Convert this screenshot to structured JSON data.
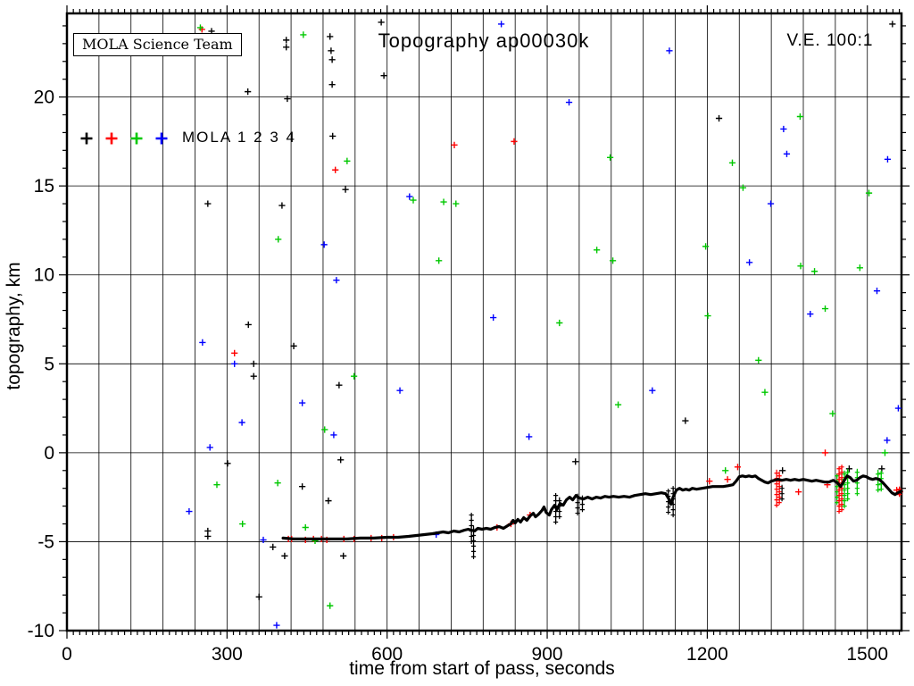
{
  "annotations": {
    "credit": "MOLA Science Team",
    "title": "Topography ap00030k",
    "vertical_exaggeration": "V.E. 100:1"
  },
  "legend": {
    "label": "MOLA 1 2 3 4",
    "marker_colors": [
      "#000000",
      "#ff0000",
      "#00c800",
      "#0000ff"
    ]
  },
  "chart_data": {
    "type": "scatter",
    "title": "Topography ap00030k",
    "xlabel": "time from start of pass, seconds",
    "ylabel": "topography, km",
    "axes": {
      "x": {
        "min": 0,
        "max": 1564,
        "ticks": [
          0,
          300,
          600,
          900,
          1200,
          1500
        ],
        "grid_step": 60,
        "minor_step": 12
      },
      "y": {
        "min": -10,
        "max": 24.7,
        "ticks": [
          20,
          15,
          10,
          5,
          0,
          -5,
          -10
        ],
        "grid_values": [
          -5,
          0,
          5,
          10,
          15,
          20
        ],
        "minor_step": 1
      }
    },
    "grid": "on",
    "legend_position": "upper-left-inside",
    "series": [
      {
        "name": "MOLA 1",
        "color": "#000000",
        "points": [
          [
            264,
            14.0
          ],
          [
            271,
            23.7
          ],
          [
            301,
            -0.6
          ],
          [
            339,
            20.3
          ],
          [
            340,
            7.2
          ],
          [
            350,
            5.0
          ],
          [
            350,
            4.3
          ],
          [
            360,
            -8.1
          ],
          [
            386,
            -5.3
          ],
          [
            403,
            13.9
          ],
          [
            408,
            -5.8
          ],
          [
            411,
            23.2
          ],
          [
            411,
            22.8
          ],
          [
            413,
            19.9
          ],
          [
            425,
            6.0
          ],
          [
            441,
            -1.9
          ],
          [
            264,
            -4.4
          ],
          [
            264,
            -4.7
          ],
          [
            490,
            -2.7
          ],
          [
            493,
            23.4
          ],
          [
            495,
            22.6
          ],
          [
            497,
            22.1
          ],
          [
            497,
            20.7
          ],
          [
            498,
            17.8
          ],
          [
            510,
            3.8
          ],
          [
            513,
            -0.4
          ],
          [
            518,
            -5.8
          ],
          [
            522,
            14.8
          ],
          [
            589,
            24.2
          ],
          [
            594,
            21.2
          ],
          [
            953,
            -0.5
          ],
          [
            1159,
            1.8
          ],
          [
            1222,
            18.8
          ],
          [
            1341,
            -1.0
          ],
          [
            1466,
            -0.9
          ],
          [
            1527,
            -0.9
          ],
          [
            1547,
            24.1
          ]
        ]
      },
      {
        "name": "MOLA 2",
        "color": "#ff0000",
        "points": [
          [
            253,
            23.8
          ],
          [
            314,
            5.6
          ],
          [
            503,
            15.9
          ],
          [
            726,
            17.3
          ],
          [
            838,
            17.5
          ],
          [
            1257,
            -0.8
          ],
          [
            1421,
            0.0
          ],
          [
            415,
            -4.85
          ],
          [
            421,
            -4.85
          ],
          [
            447,
            -4.9
          ],
          [
            462,
            -4.85
          ],
          [
            477,
            -4.85
          ],
          [
            487,
            -4.9
          ],
          [
            519,
            -4.85
          ],
          [
            538,
            -4.85
          ],
          [
            570,
            -4.8
          ],
          [
            590,
            -4.8
          ],
          [
            612,
            -4.75
          ],
          [
            806,
            -4.2
          ],
          [
            832,
            -4.0
          ],
          [
            868,
            -3.5
          ],
          [
            1204,
            -1.6
          ],
          [
            1238,
            -1.5
          ],
          [
            1371,
            -2.2
          ],
          [
            1425,
            -1.8
          ],
          [
            1555,
            -2.1
          ],
          [
            1561,
            -2.2
          ]
        ]
      },
      {
        "name": "MOLA 3",
        "color": "#00c800",
        "points": [
          [
            250,
            23.9
          ],
          [
            281,
            -1.8
          ],
          [
            329,
            -4.0
          ],
          [
            395,
            -1.7
          ],
          [
            396,
            12.0
          ],
          [
            443,
            23.5
          ],
          [
            447,
            -4.2
          ],
          [
            465,
            -4.95
          ],
          [
            483,
            1.3
          ],
          [
            493,
            -8.6
          ],
          [
            525,
            16.4
          ],
          [
            538,
            4.3
          ],
          [
            649,
            14.2
          ],
          [
            697,
            10.8
          ],
          [
            706,
            14.1
          ],
          [
            729,
            14.0
          ],
          [
            923,
            7.3
          ],
          [
            993,
            11.4
          ],
          [
            1018,
            16.6
          ],
          [
            1023,
            10.8
          ],
          [
            1033,
            2.7
          ],
          [
            1197,
            11.6
          ],
          [
            1201,
            7.7
          ],
          [
            1234,
            -1.0
          ],
          [
            1247,
            16.3
          ],
          [
            1267,
            14.9
          ],
          [
            1296,
            5.2
          ],
          [
            1308,
            3.4
          ],
          [
            1374,
            18.9
          ],
          [
            1375,
            10.5
          ],
          [
            1401,
            10.2
          ],
          [
            1421,
            8.1
          ],
          [
            1435,
            2.2
          ],
          [
            1486,
            10.4
          ],
          [
            1503,
            14.6
          ],
          [
            1533,
            0.0
          ]
        ]
      },
      {
        "name": "MOLA 4",
        "color": "#0000ff",
        "points": [
          [
            229,
            -3.3
          ],
          [
            254,
            6.2
          ],
          [
            268,
            0.3
          ],
          [
            314,
            5.0
          ],
          [
            328,
            1.7
          ],
          [
            368,
            -4.9
          ],
          [
            393,
            -9.7
          ],
          [
            441,
            2.8
          ],
          [
            482,
            11.7
          ],
          [
            500,
            1.0
          ],
          [
            505,
            9.7
          ],
          [
            624,
            3.5
          ],
          [
            642,
            14.4
          ],
          [
            692,
            -4.6
          ],
          [
            799,
            7.6
          ],
          [
            814,
            24.1
          ],
          [
            866,
            0.9
          ],
          [
            941,
            19.7
          ],
          [
            1097,
            3.5
          ],
          [
            1129,
            22.6
          ],
          [
            1279,
            10.7
          ],
          [
            1319,
            14.0
          ],
          [
            1343,
            18.2
          ],
          [
            1349,
            16.8
          ],
          [
            1393,
            7.8
          ],
          [
            1518,
            9.1
          ],
          [
            1537,
            0.7
          ],
          [
            1538,
            16.5
          ],
          [
            1558,
            2.5
          ]
        ]
      }
    ],
    "ground_track": {
      "name": "surface profile (dense MOLA 1 returns)",
      "color": "#000000",
      "polyline": [
        [
          405,
          -4.8
        ],
        [
          425,
          -4.85
        ],
        [
          450,
          -4.85
        ],
        [
          475,
          -4.85
        ],
        [
          500,
          -4.85
        ],
        [
          525,
          -4.85
        ],
        [
          550,
          -4.8
        ],
        [
          575,
          -4.8
        ],
        [
          600,
          -4.75
        ],
        [
          620,
          -4.75
        ],
        [
          640,
          -4.7
        ],
        [
          655,
          -4.65
        ],
        [
          670,
          -4.6
        ],
        [
          685,
          -4.55
        ],
        [
          695,
          -4.5
        ],
        [
          705,
          -4.45
        ],
        [
          715,
          -4.5
        ],
        [
          725,
          -4.4
        ],
        [
          735,
          -4.45
        ],
        [
          745,
          -4.35
        ],
        [
          752,
          -4.3
        ],
        [
          758,
          -4.35
        ],
        [
          764,
          -4.4
        ],
        [
          770,
          -4.25
        ],
        [
          778,
          -4.3
        ],
        [
          786,
          -4.25
        ],
        [
          794,
          -4.3
        ],
        [
          802,
          -4.2
        ],
        [
          810,
          -4.15
        ],
        [
          818,
          -4.25
        ],
        [
          826,
          -4.1
        ],
        [
          832,
          -4.0
        ],
        [
          836,
          -3.8
        ],
        [
          840,
          -3.95
        ],
        [
          845,
          -3.75
        ],
        [
          850,
          -3.9
        ],
        [
          856,
          -3.65
        ],
        [
          862,
          -3.8
        ],
        [
          868,
          -3.55
        ],
        [
          874,
          -3.4
        ],
        [
          878,
          -3.6
        ],
        [
          884,
          -3.45
        ],
        [
          890,
          -3.25
        ],
        [
          894,
          -3.05
        ],
        [
          898,
          -3.35
        ],
        [
          904,
          -3.5
        ],
        [
          908,
          -3.2
        ],
        [
          914,
          -2.95
        ],
        [
          918,
          -3.2
        ],
        [
          924,
          -2.85
        ],
        [
          930,
          -2.95
        ],
        [
          936,
          -2.65
        ],
        [
          942,
          -2.5
        ],
        [
          948,
          -2.65
        ],
        [
          954,
          -2.4
        ],
        [
          960,
          -2.55
        ],
        [
          968,
          -2.6
        ],
        [
          976,
          -2.5
        ],
        [
          984,
          -2.6
        ],
        [
          992,
          -2.5
        ],
        [
          1000,
          -2.55
        ],
        [
          1008,
          -2.45
        ],
        [
          1016,
          -2.5
        ],
        [
          1024,
          -2.45
        ],
        [
          1034,
          -2.5
        ],
        [
          1044,
          -2.45
        ],
        [
          1054,
          -2.5
        ],
        [
          1064,
          -2.4
        ],
        [
          1074,
          -2.35
        ],
        [
          1084,
          -2.3
        ],
        [
          1094,
          -2.35
        ],
        [
          1104,
          -2.3
        ],
        [
          1114,
          -2.25
        ],
        [
          1122,
          -2.3
        ],
        [
          1128,
          -2.6
        ],
        [
          1132,
          -2.9
        ],
        [
          1136,
          -2.5
        ],
        [
          1142,
          -2.1
        ],
        [
          1148,
          -2.0
        ],
        [
          1154,
          -2.1
        ],
        [
          1160,
          -2.05
        ],
        [
          1166,
          -2.1
        ],
        [
          1172,
          -2.0
        ],
        [
          1180,
          -2.05
        ],
        [
          1190,
          -2.0
        ],
        [
          1200,
          -1.95
        ],
        [
          1210,
          -1.9
        ],
        [
          1220,
          -1.9
        ],
        [
          1230,
          -1.9
        ],
        [
          1240,
          -1.85
        ],
        [
          1248,
          -1.8
        ],
        [
          1254,
          -1.6
        ],
        [
          1260,
          -1.35
        ],
        [
          1266,
          -1.3
        ],
        [
          1272,
          -1.35
        ],
        [
          1278,
          -1.3
        ],
        [
          1284,
          -1.35
        ],
        [
          1290,
          -1.3
        ],
        [
          1296,
          -1.45
        ],
        [
          1302,
          -1.55
        ],
        [
          1308,
          -1.65
        ],
        [
          1314,
          -1.7
        ],
        [
          1320,
          -1.6
        ],
        [
          1326,
          -1.55
        ],
        [
          1332,
          -1.5
        ],
        [
          1340,
          -1.55
        ],
        [
          1348,
          -1.5
        ],
        [
          1356,
          -1.55
        ],
        [
          1364,
          -1.5
        ],
        [
          1372,
          -1.55
        ],
        [
          1380,
          -1.5
        ],
        [
          1388,
          -1.55
        ],
        [
          1396,
          -1.6
        ],
        [
          1404,
          -1.55
        ],
        [
          1412,
          -1.6
        ],
        [
          1420,
          -1.65
        ],
        [
          1428,
          -1.65
        ],
        [
          1436,
          -1.55
        ],
        [
          1444,
          -1.7
        ],
        [
          1450,
          -1.9
        ],
        [
          1456,
          -1.6
        ],
        [
          1462,
          -1.3
        ],
        [
          1468,
          -1.4
        ],
        [
          1474,
          -1.6
        ],
        [
          1480,
          -1.55
        ],
        [
          1486,
          -1.4
        ],
        [
          1492,
          -1.3
        ],
        [
          1498,
          -1.35
        ],
        [
          1504,
          -1.45
        ],
        [
          1510,
          -1.5
        ],
        [
          1516,
          -1.45
        ],
        [
          1522,
          -1.5
        ],
        [
          1528,
          -1.65
        ],
        [
          1534,
          -1.85
        ],
        [
          1540,
          -2.05
        ],
        [
          1546,
          -2.25
        ],
        [
          1552,
          -2.35
        ],
        [
          1557,
          -2.25
        ],
        [
          1564,
          -2.15
        ]
      ]
    },
    "spike_clusters": [
      {
        "t": 758,
        "z_top": -3.5,
        "z_bottom": -5.0,
        "series": 0
      },
      {
        "t": 762,
        "z_top": -4.1,
        "z_bottom": -5.85,
        "series": 0
      },
      {
        "t": 916,
        "z_top": -2.4,
        "z_bottom": -3.9,
        "series": 0
      },
      {
        "t": 923,
        "z_top": -2.5,
        "z_bottom": -3.6,
        "series": 0
      },
      {
        "t": 957,
        "z_top": -2.3,
        "z_bottom": -3.4,
        "series": 0
      },
      {
        "t": 966,
        "z_top": -2.4,
        "z_bottom": -3.2,
        "series": 0
      },
      {
        "t": 1127,
        "z_top": -2.1,
        "z_bottom": -3.35,
        "series": 0
      },
      {
        "t": 1136,
        "z_top": -2.0,
        "z_bottom": -3.5,
        "series": 0
      },
      {
        "t": 1330,
        "z_top": -0.95,
        "z_bottom": -2.95,
        "series": 1
      },
      {
        "t": 1335,
        "z_top": -1.05,
        "z_bottom": -2.8,
        "series": 1
      },
      {
        "t": 1340,
        "z_top": -1.8,
        "z_bottom": -2.6,
        "series": 0
      },
      {
        "t": 1443,
        "z_top": -1.2,
        "z_bottom": -2.8,
        "series": 2
      },
      {
        "t": 1447,
        "z_top": -0.8,
        "z_bottom": -3.3,
        "series": 1
      },
      {
        "t": 1452,
        "z_top": -0.7,
        "z_bottom": -3.2,
        "series": 1
      },
      {
        "t": 1457,
        "z_top": -1.0,
        "z_bottom": -3.0,
        "series": 2
      },
      {
        "t": 1463,
        "z_top": -0.9,
        "z_bottom": -2.6,
        "series": 2
      },
      {
        "t": 1481,
        "z_top": -0.9,
        "z_bottom": -2.3,
        "series": 2
      },
      {
        "t": 1520,
        "z_top": -0.95,
        "z_bottom": -2.1,
        "series": 2
      },
      {
        "t": 1526,
        "z_top": -1.0,
        "z_bottom": -2.05,
        "series": 2
      },
      {
        "t": 1560,
        "z_top": -1.9,
        "z_bottom": -2.35,
        "series": 1
      }
    ]
  }
}
